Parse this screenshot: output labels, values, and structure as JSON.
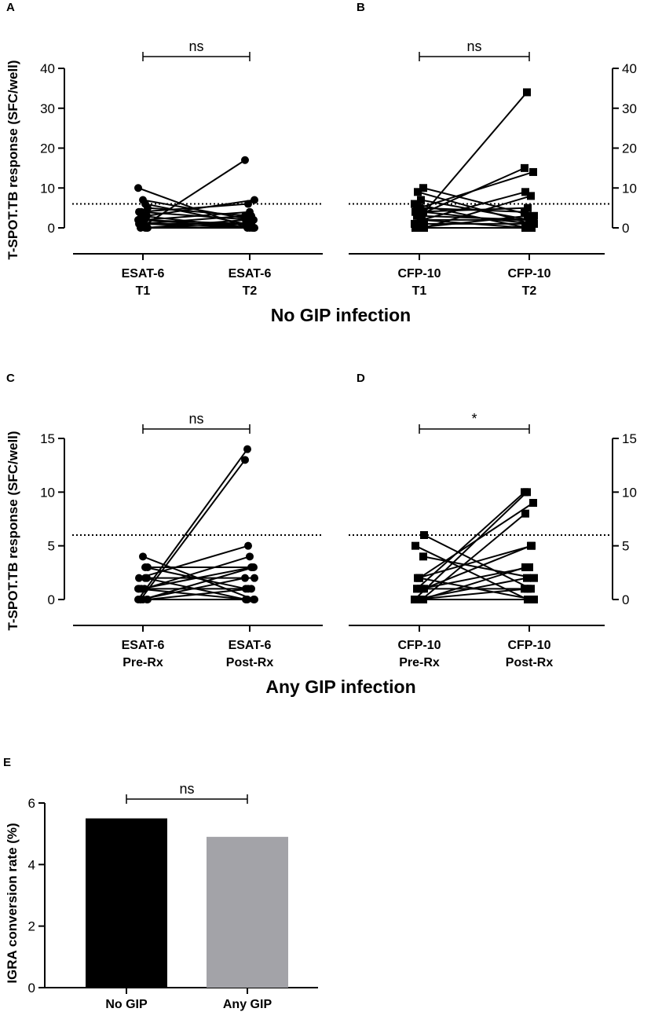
{
  "figure_section_titles": {
    "no_gip": "No GIP infection",
    "any_gip": "Any GIP infection"
  },
  "chart_data": [
    {
      "panel": "A",
      "type": "line",
      "subtype": "paired",
      "marker": "circle",
      "ylabel": "T-SPOT.TB response (SFC/well)",
      "y_axis_side": "left",
      "ylim": [
        0,
        40
      ],
      "yticks": [
        0,
        10,
        20,
        30,
        40
      ],
      "categories": [
        [
          "ESAT-6",
          "T1"
        ],
        [
          "ESAT-6",
          "T2"
        ]
      ],
      "threshold": 6,
      "significance": "ns",
      "pairs": [
        [
          10,
          0
        ],
        [
          0,
          17
        ],
        [
          7,
          2
        ],
        [
          6,
          1
        ],
        [
          5,
          3
        ],
        [
          4,
          6
        ],
        [
          3,
          7
        ],
        [
          3,
          0
        ],
        [
          2,
          4
        ],
        [
          2,
          1
        ],
        [
          1,
          3
        ],
        [
          1,
          0
        ],
        [
          0,
          2
        ],
        [
          0,
          1
        ],
        [
          1,
          1
        ],
        [
          0,
          0
        ],
        [
          4,
          2
        ],
        [
          2,
          0
        ]
      ]
    },
    {
      "panel": "B",
      "type": "line",
      "subtype": "paired",
      "marker": "square",
      "ylabel": "",
      "y_axis_side": "right",
      "ylim": [
        0,
        40
      ],
      "yticks": [
        0,
        10,
        20,
        30,
        40
      ],
      "categories": [
        [
          "CFP-10",
          "T1"
        ],
        [
          "CFP-10",
          "T2"
        ]
      ],
      "threshold": 6,
      "significance": "ns",
      "pairs": [
        [
          1,
          34
        ],
        [
          3,
          15
        ],
        [
          5,
          14
        ],
        [
          2,
          9
        ],
        [
          0,
          8
        ],
        [
          4,
          5
        ],
        [
          10,
          3
        ],
        [
          9,
          1
        ],
        [
          7,
          2
        ],
        [
          6,
          0
        ],
        [
          5,
          4
        ],
        [
          3,
          2
        ],
        [
          2,
          0
        ],
        [
          1,
          1
        ],
        [
          0,
          3
        ],
        [
          4,
          1
        ],
        [
          0,
          0
        ],
        [
          2,
          2
        ]
      ]
    },
    {
      "panel": "C",
      "type": "line",
      "subtype": "paired",
      "marker": "circle",
      "ylabel": "T-SPOT.TB response (SFC/well)",
      "y_axis_side": "left",
      "ylim": [
        0,
        15
      ],
      "yticks": [
        0,
        5,
        10,
        15
      ],
      "categories": [
        [
          "ESAT-6",
          "Pre-Rx"
        ],
        [
          "ESAT-6",
          "Post-Rx"
        ]
      ],
      "threshold": 6,
      "significance": "ns",
      "pairs": [
        [
          0,
          14
        ],
        [
          0,
          13
        ],
        [
          4,
          0
        ],
        [
          3,
          1
        ],
        [
          3,
          3
        ],
        [
          2,
          5
        ],
        [
          2,
          2
        ],
        [
          1,
          3
        ],
        [
          1,
          4
        ],
        [
          1,
          0
        ],
        [
          0,
          2
        ],
        [
          0,
          3
        ],
        [
          2,
          0
        ],
        [
          0,
          1
        ],
        [
          1,
          1
        ],
        [
          0,
          0
        ]
      ]
    },
    {
      "panel": "D",
      "type": "line",
      "subtype": "paired",
      "marker": "square",
      "ylabel": "",
      "y_axis_side": "right",
      "ylim": [
        0,
        15
      ],
      "yticks": [
        0,
        5,
        10,
        15
      ],
      "categories": [
        [
          "CFP-10",
          "Pre-Rx"
        ],
        [
          "CFP-10",
          "Post-Rx"
        ]
      ],
      "threshold": 6,
      "significance": "*",
      "pairs": [
        [
          0,
          10
        ],
        [
          1,
          10
        ],
        [
          2,
          9
        ],
        [
          0,
          8
        ],
        [
          6,
          1
        ],
        [
          5,
          0
        ],
        [
          4,
          2
        ],
        [
          2,
          5
        ],
        [
          1,
          3
        ],
        [
          0,
          2
        ],
        [
          1,
          1
        ],
        [
          2,
          0
        ],
        [
          0,
          3
        ],
        [
          1,
          5
        ],
        [
          0,
          1
        ],
        [
          0,
          0
        ]
      ]
    },
    {
      "panel": "E",
      "type": "bar",
      "ylabel": "IGRA conversion rate (%)",
      "ylim": [
        0,
        6
      ],
      "yticks": [
        0,
        2,
        4,
        6
      ],
      "categories": [
        "No GIP",
        "Any GIP"
      ],
      "values": [
        5.5,
        4.9
      ],
      "colors": [
        "#000000",
        "#a3a3a8"
      ],
      "significance": "ns"
    }
  ]
}
